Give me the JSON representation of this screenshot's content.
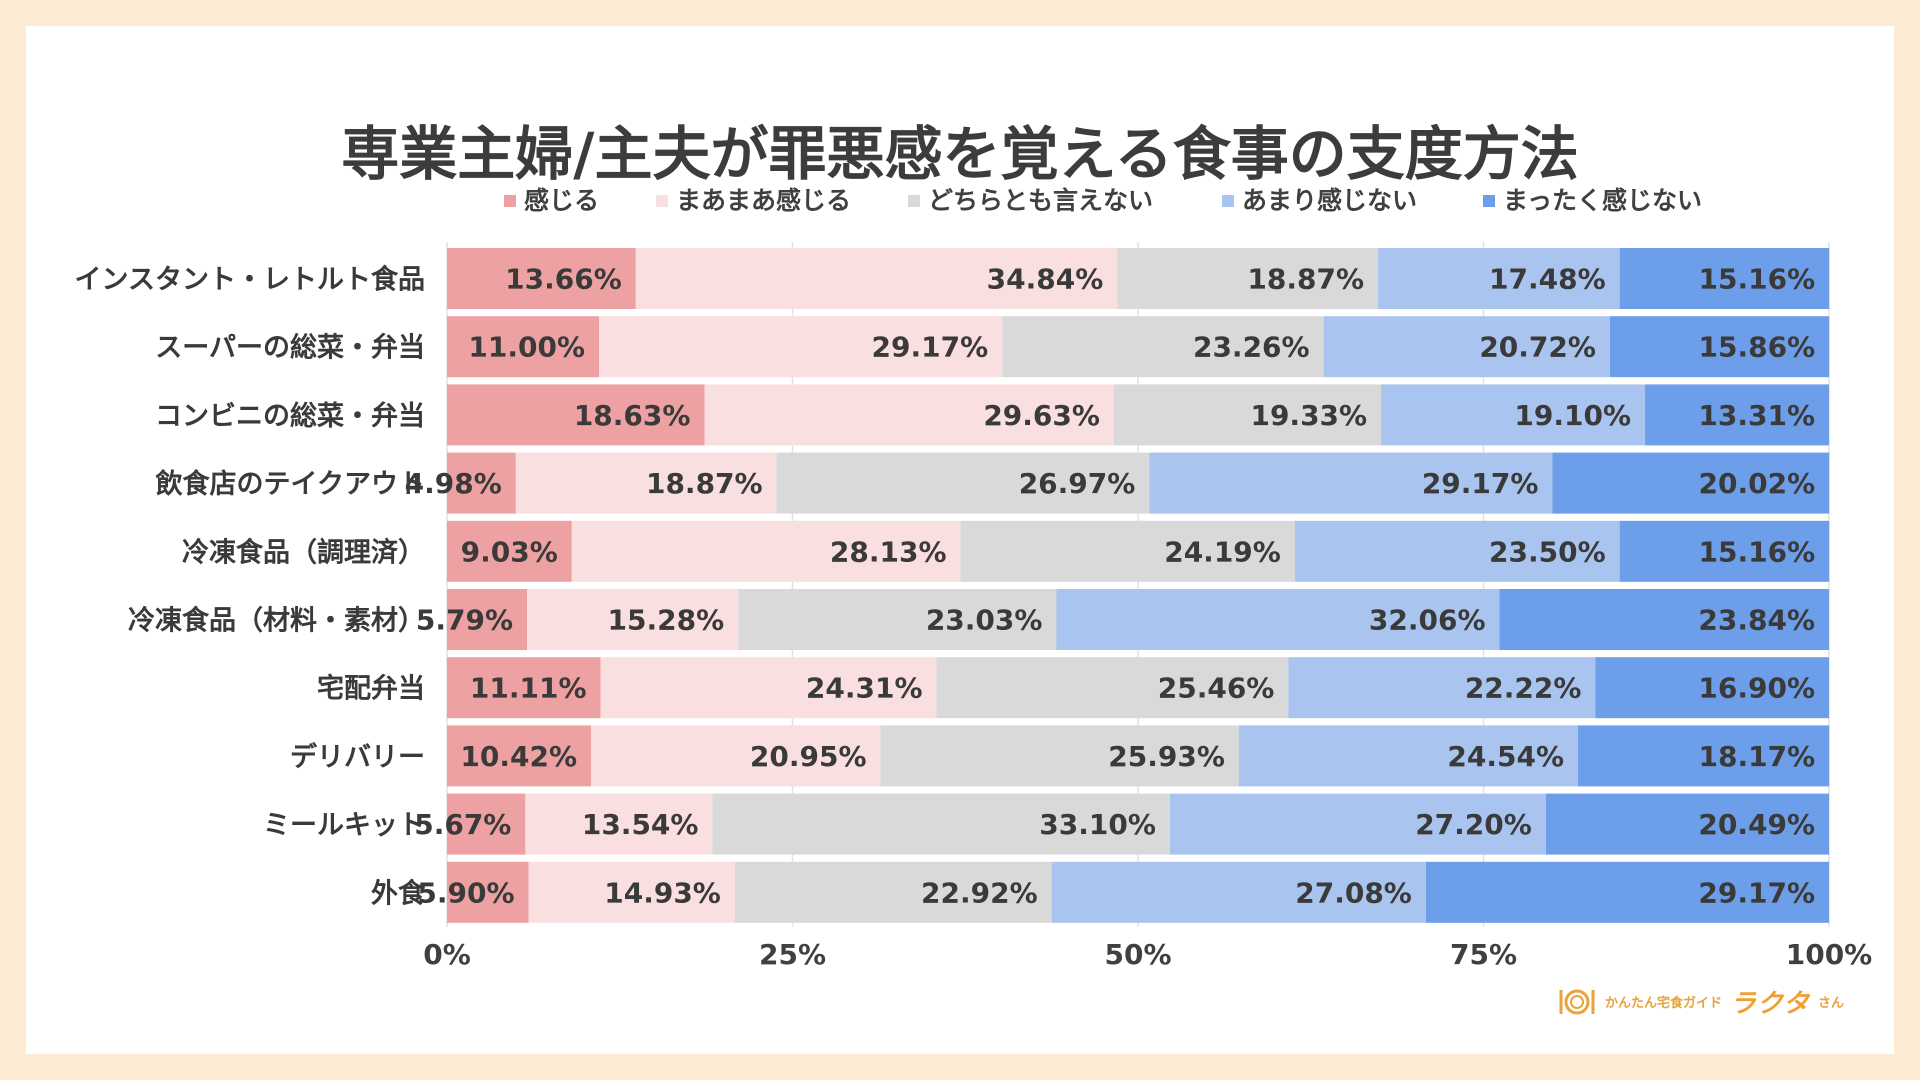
{
  "chart_data": {
    "type": "bar",
    "orientation": "horizontal",
    "stacked": "percent",
    "title": "専業主婦/主夫が罪悪感を覚える食事の支度方法",
    "categories": [
      "インスタント・レトルト食品",
      "スーパーの総菜・弁当",
      "コンビニの総菜・弁当",
      "飲食店のテイクアウト",
      "冷凍食品（調理済）",
      "冷凍食品（材料・素材）",
      "宅配弁当",
      "デリバリー",
      "ミールキット",
      "外食"
    ],
    "series": [
      {
        "name": "感じる",
        "color": "#eda1a2",
        "values": [
          13.66,
          11.0,
          18.63,
          4.98,
          9.03,
          5.79,
          11.11,
          10.42,
          5.67,
          5.9
        ]
      },
      {
        "name": "まあまあ感じる",
        "color": "#fadfe0",
        "values": [
          34.84,
          29.17,
          29.63,
          18.87,
          28.13,
          15.28,
          24.31,
          20.95,
          13.54,
          14.93
        ]
      },
      {
        "name": "どちらとも言えない",
        "color": "#d9d9d9",
        "values": [
          18.87,
          23.26,
          19.33,
          26.97,
          24.19,
          23.03,
          25.46,
          25.93,
          33.1,
          22.92
        ]
      },
      {
        "name": "あまり感じない",
        "color": "#a9c4ee",
        "values": [
          17.48,
          20.72,
          19.1,
          29.17,
          23.5,
          32.06,
          22.22,
          24.54,
          27.2,
          27.08
        ]
      },
      {
        "name": "まったく感じない",
        "color": "#6d9ee9",
        "values": [
          15.16,
          15.86,
          13.31,
          20.02,
          15.16,
          23.84,
          16.9,
          18.17,
          20.49,
          29.17
        ]
      }
    ],
    "x_ticks": [
      "0%",
      "25%",
      "50%",
      "75%",
      "100%"
    ],
    "xlim": [
      0,
      100
    ],
    "grid": true,
    "legend_position": "top"
  },
  "branding": {
    "sub": "かんたん宅食ガイド",
    "main": "ラクタ",
    "suffix": "さん"
  }
}
